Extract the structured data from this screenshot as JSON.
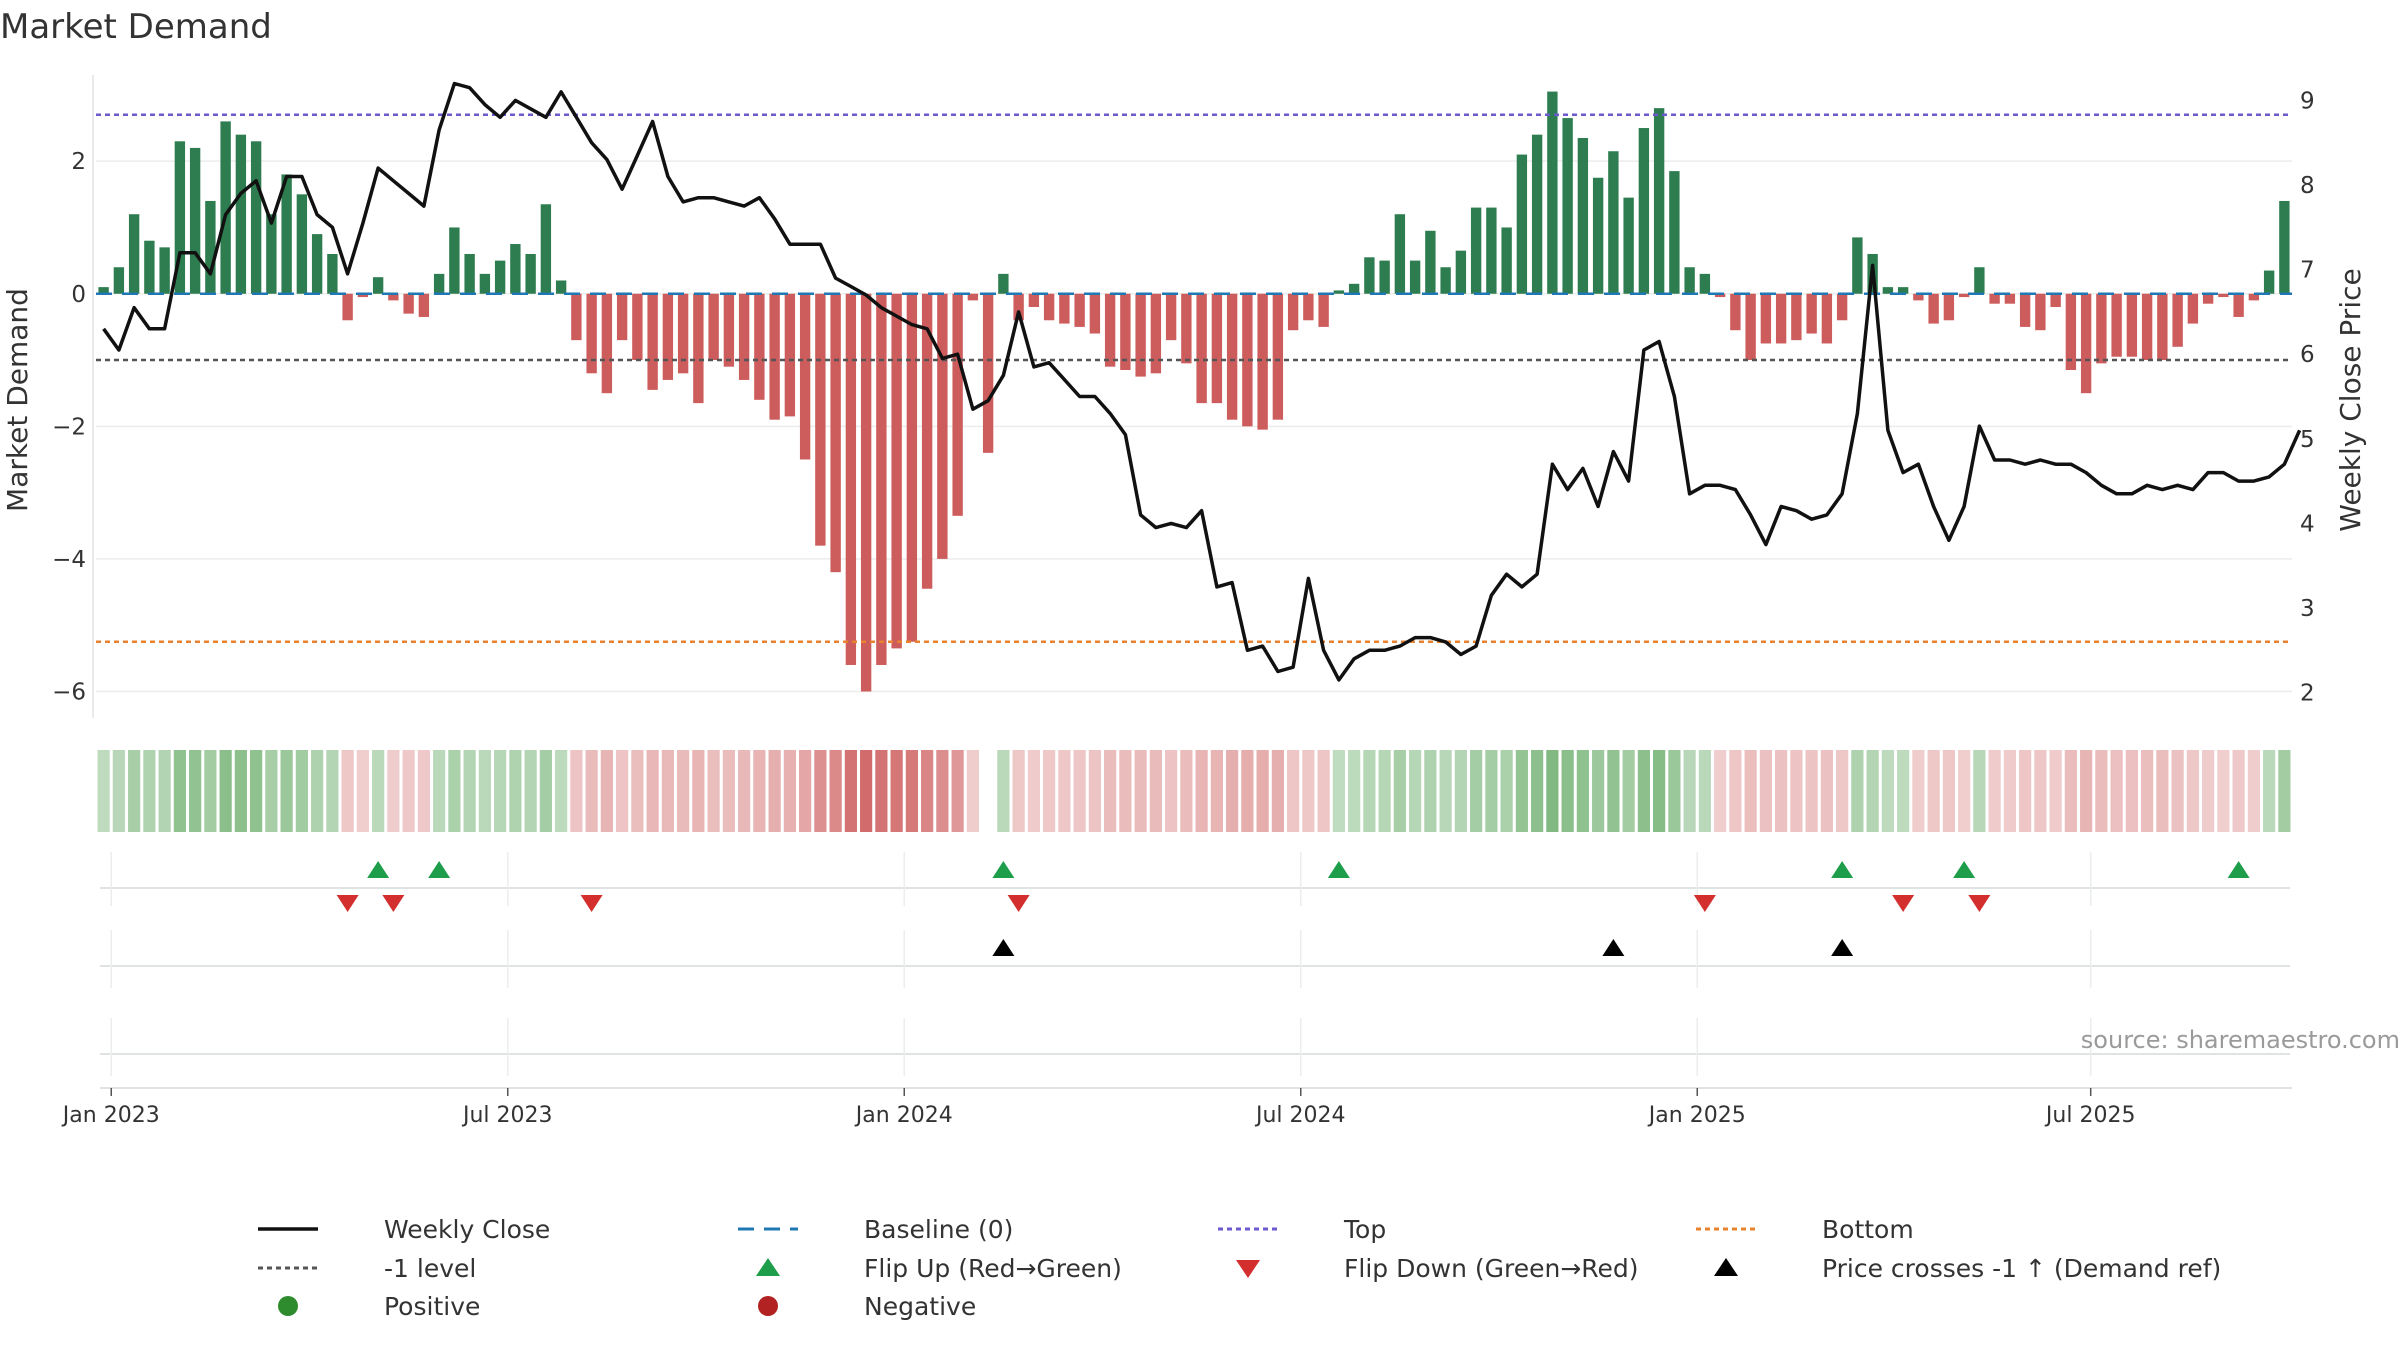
{
  "chart_data": {
    "type": "bar+line",
    "title": "Market Demand",
    "ylabel_left": "Market Demand",
    "ylabel_right": "Weekly Close Price",
    "ylim_left": [
      -6.4,
      3.3
    ],
    "ylim_right": [
      1.7,
      9.3
    ],
    "left_ticks": [
      {
        "v": 2,
        "label": "2"
      },
      {
        "v": 0,
        "label": "0"
      },
      {
        "v": -2,
        "label": "−2"
      },
      {
        "v": -4,
        "label": "−4"
      },
      {
        "v": -6,
        "label": "−6"
      }
    ],
    "right_ticks": [
      {
        "v": 9,
        "label": "9"
      },
      {
        "v": 8,
        "label": "8"
      },
      {
        "v": 7,
        "label": "7"
      },
      {
        "v": 6,
        "label": "6"
      },
      {
        "v": 5,
        "label": "5"
      },
      {
        "v": 4,
        "label": "4"
      },
      {
        "v": 3,
        "label": "3"
      },
      {
        "v": 2,
        "label": "2"
      }
    ],
    "x_ticks": [
      {
        "i": 0.5,
        "label": "Jan 2023"
      },
      {
        "i": 26.5,
        "label": "Jul 2023"
      },
      {
        "i": 52.5,
        "label": "Jan 2024"
      },
      {
        "i": 78.5,
        "label": "Jul 2024"
      },
      {
        "i": 104.5,
        "label": "Jan 2025"
      },
      {
        "i": 130.3,
        "label": "Jul 2025"
      }
    ],
    "reference_lines": {
      "top": 2.7,
      "bottom": -5.25,
      "minus_one": -1,
      "baseline": 0
    },
    "demand": [
      0.1,
      0.4,
      1.2,
      0.8,
      0.7,
      2.3,
      2.2,
      1.4,
      2.6,
      2.4,
      2.3,
      1.2,
      1.8,
      1.5,
      0.9,
      0.6,
      -0.4,
      -0.05,
      0.25,
      -0.1,
      -0.3,
      -0.35,
      0.3,
      1.0,
      0.6,
      0.3,
      0.5,
      0.75,
      0.6,
      1.35,
      0.2,
      -0.7,
      -1.2,
      -1.5,
      -0.7,
      -1.0,
      -1.45,
      -1.3,
      -1.2,
      -1.65,
      -1.0,
      -1.1,
      -1.3,
      -1.6,
      -1.9,
      -1.85,
      -2.5,
      -3.8,
      -4.2,
      -5.6,
      -6.0,
      -5.6,
      -5.35,
      -5.25,
      -4.45,
      -4.0,
      -3.35,
      -0.1,
      -2.4,
      0.3,
      -0.4,
      -0.2,
      -0.4,
      -0.45,
      -0.5,
      -0.6,
      -1.1,
      -1.15,
      -1.25,
      -1.2,
      -0.7,
      -1.05,
      -1.65,
      -1.65,
      -1.9,
      -2.0,
      -2.05,
      -1.9,
      -0.55,
      -0.4,
      -0.5,
      0.05,
      0.15,
      0.55,
      0.5,
      1.2,
      0.5,
      0.95,
      0.4,
      0.65,
      1.3,
      1.3,
      1.0,
      2.1,
      2.4,
      3.05,
      2.65,
      2.35,
      1.75,
      2.15,
      1.45,
      2.5,
      2.8,
      1.85,
      0.4,
      0.3,
      -0.05,
      -0.55,
      -1.0,
      -0.75,
      -0.75,
      -0.7,
      -0.6,
      -0.75,
      -0.4,
      0.85,
      0.6,
      0.1,
      0.1,
      -0.1,
      -0.45,
      -0.4,
      -0.05,
      0.4,
      -0.15,
      -0.15,
      -0.5,
      -0.55,
      -0.2,
      -1.15,
      -1.5,
      -1.05,
      -0.95,
      -0.95,
      -1.0,
      -1.0,
      -0.8,
      -0.45,
      -0.15,
      -0.05,
      -0.35,
      -0.1,
      0.35,
      1.4
    ],
    "weekly_close": [
      6.3,
      6.05,
      6.55,
      6.3,
      6.3,
      7.2,
      7.2,
      6.95,
      7.65,
      7.9,
      8.05,
      7.55,
      8.1,
      8.1,
      7.65,
      7.5,
      6.95,
      7.55,
      8.2,
      8.05,
      7.9,
      7.75,
      8.65,
      9.2,
      9.15,
      8.95,
      8.8,
      9.0,
      8.9,
      8.8,
      9.1,
      8.8,
      8.5,
      8.3,
      7.95,
      8.35,
      8.75,
      8.1,
      7.8,
      7.85,
      7.85,
      7.8,
      7.75,
      7.85,
      7.6,
      7.3,
      7.3,
      7.3,
      6.9,
      6.8,
      6.7,
      6.55,
      6.45,
      6.35,
      6.3,
      5.95,
      6.0,
      5.35,
      5.45,
      5.75,
      6.5,
      5.85,
      5.9,
      5.7,
      5.5,
      5.5,
      5.3,
      5.05,
      4.1,
      3.95,
      4.0,
      3.95,
      4.15,
      3.25,
      3.3,
      2.5,
      2.55,
      2.25,
      2.3,
      3.35,
      2.5,
      2.15,
      2.4,
      2.5,
      2.5,
      2.55,
      2.65,
      2.65,
      2.6,
      2.45,
      2.55,
      3.15,
      3.4,
      3.25,
      3.4,
      4.7,
      4.4,
      4.65,
      4.2,
      4.85,
      4.5,
      6.05,
      6.15,
      5.5,
      4.35,
      4.45,
      4.45,
      4.4,
      4.1,
      3.75,
      4.2,
      4.15,
      4.05,
      4.1,
      4.35,
      5.3,
      7.05,
      5.1,
      4.6,
      4.7,
      4.2,
      3.8,
      4.2,
      5.15,
      4.75,
      4.75,
      4.7,
      4.75,
      4.7,
      4.7,
      4.6,
      4.45,
      4.35,
      4.35,
      4.45,
      4.4,
      4.45,
      4.4,
      4.6,
      4.6,
      4.5,
      4.5,
      4.55,
      4.7,
      5.1
    ],
    "strip_gaps": [
      58
    ],
    "flip_up_idx": [
      18,
      22,
      59,
      81,
      114,
      122,
      140
    ],
    "flip_down_idx": [
      16,
      19,
      32,
      60,
      105,
      118,
      123
    ],
    "price_cross_idx": [
      59,
      99,
      114
    ],
    "colors": {
      "positive_bar": "#2e7d50",
      "negative_bar": "#cd5c5c",
      "price_line": "#111111",
      "top_line": "#6a5acd",
      "bottom_line": "#e8822e",
      "minus_one_line": "#555555",
      "baseline": "#1f77b4",
      "flip_up": "#1e9e4a",
      "flip_down": "#d32f2f",
      "cross": "#000000",
      "positive_dot": "#2e8b2e",
      "negative_dot": "#b22222"
    },
    "legend": [
      {
        "label": "Weekly Close",
        "kind": "line"
      },
      {
        "label": "Baseline (0)",
        "kind": "dash"
      },
      {
        "label": "Top",
        "kind": "dot-top"
      },
      {
        "label": "Bottom",
        "kind": "dot-bottom"
      },
      {
        "label": "-1 level",
        "kind": "dot-grey"
      },
      {
        "label": "Flip Up (Red→Green)",
        "kind": "tri-up-green"
      },
      {
        "label": "Flip Down (Green→Red)",
        "kind": "tri-down-red"
      },
      {
        "label": "Price crosses -1 ↑ (Demand ref)",
        "kind": "tri-up-black"
      },
      {
        "label": "Positive",
        "kind": "dot-green"
      },
      {
        "label": "Negative",
        "kind": "dot-red"
      }
    ],
    "source": "source: sharemaestro.com"
  }
}
